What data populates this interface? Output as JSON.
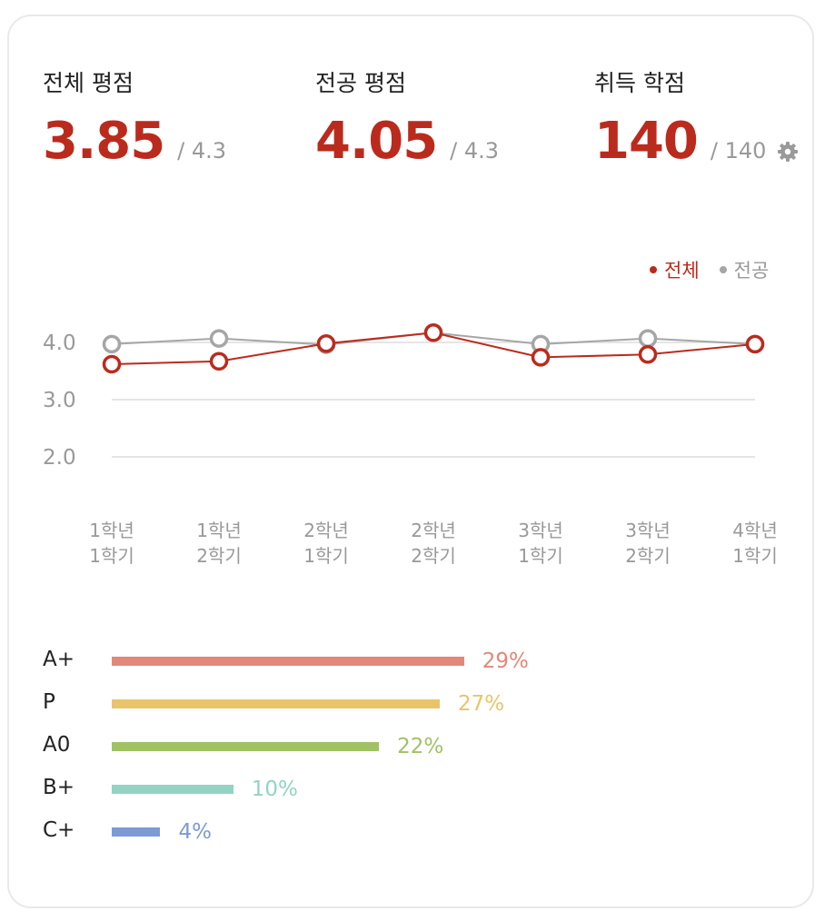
{
  "summary": {
    "overall": {
      "label": "전체 평점",
      "value": "3.85",
      "max": "/ 4.3"
    },
    "major": {
      "label": "전공 평점",
      "value": "4.05",
      "max": "/ 4.3"
    },
    "credits": {
      "label": "취득 학점",
      "value": "140",
      "max": "/ 140",
      "settings_icon": "gear-icon"
    }
  },
  "colors": {
    "accent": "#bb2b1d",
    "major_line": "#a6a6a6"
  },
  "chart_data": [
    {
      "type": "line",
      "title": "",
      "x_labels": [
        [
          "1학년",
          "1학기"
        ],
        [
          "1학년",
          "2학기"
        ],
        [
          "2학년",
          "1학기"
        ],
        [
          "2학년",
          "2학기"
        ],
        [
          "3학년",
          "1학기"
        ],
        [
          "3학년",
          "2학기"
        ],
        [
          "4학년",
          "1학기"
        ]
      ],
      "series": [
        {
          "name": "전체",
          "color": "#bb2b1d",
          "values": [
            3.62,
            3.67,
            3.98,
            4.17,
            3.74,
            3.79,
            3.97
          ]
        },
        {
          "name": "전공",
          "color": "#a6a6a6",
          "values": [
            3.97,
            4.07,
            3.96,
            4.17,
            3.97,
            4.07,
            3.97
          ]
        }
      ],
      "y_ticks": [
        "4.0",
        "3.0",
        "2.0"
      ],
      "ylim": [
        2.0,
        4.0
      ],
      "grid": true,
      "legend": "top-right"
    },
    {
      "type": "bar",
      "orientation": "horizontal",
      "categories": [
        "A+",
        "P",
        "A0",
        "B+",
        "C+"
      ],
      "values": [
        29,
        27,
        22,
        10,
        4
      ],
      "labels": [
        "29%",
        "27%",
        "22%",
        "10%",
        "4%"
      ],
      "colors": [
        "#e3877a",
        "#e9c46a",
        "#a0c265",
        "#93d3c3",
        "#7c9ad6"
      ]
    }
  ]
}
